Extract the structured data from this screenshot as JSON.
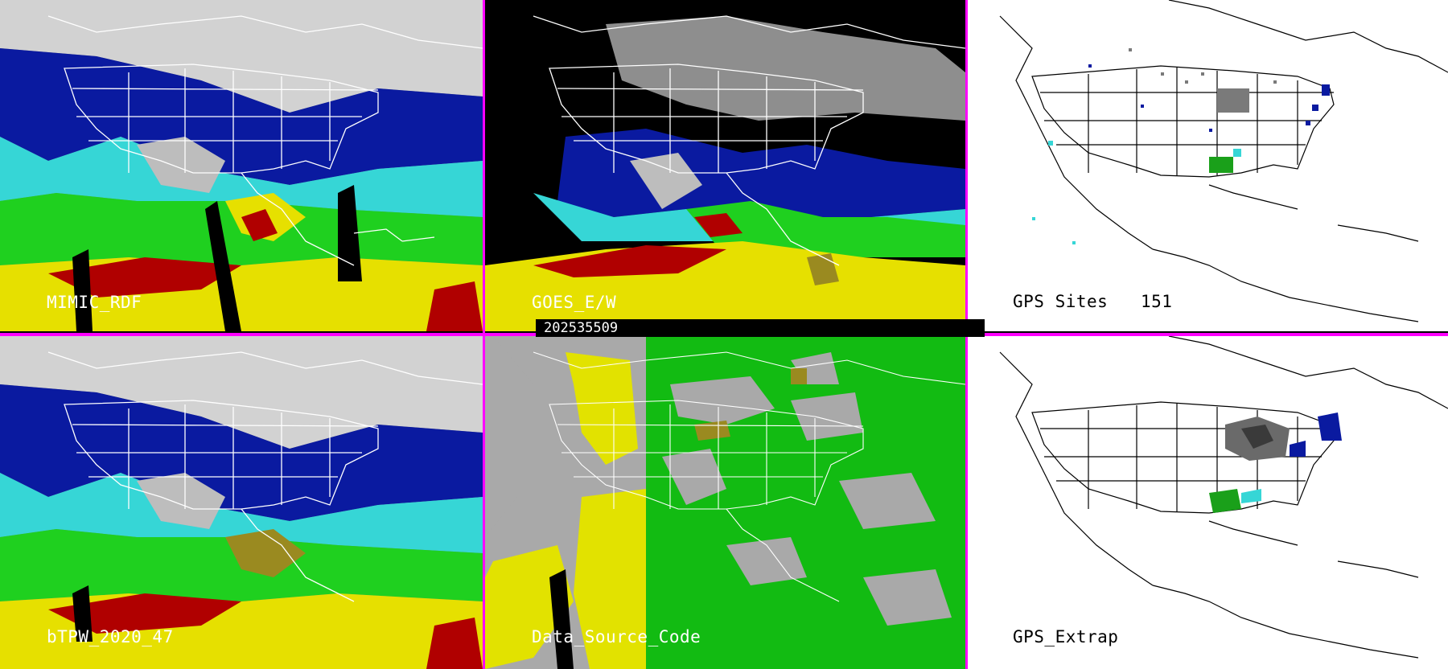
{
  "panels": {
    "mimic_rdf": {
      "label": "MIMIC_RDF"
    },
    "goes_ew": {
      "label": "GOES_E/W"
    },
    "gps_sites": {
      "label": "GPS Sites",
      "count": "151"
    },
    "btpw": {
      "label": "bTPW_2020_47"
    },
    "data_source": {
      "label": "Data_Source_Code"
    },
    "gps_extrap": {
      "label": "GPS_Extrap"
    }
  },
  "timestamp": "202535509",
  "colors": {
    "divider": "#ff00ff",
    "background_black": "#000000",
    "map_white": "#ffffff",
    "tpw_gray": "#9a9a9a",
    "tpw_blue": "#0a1aa0",
    "tpw_cyan": "#36d6d6",
    "tpw_green": "#1fd01f",
    "tpw_yellow": "#e6e000",
    "tpw_red": "#b00000",
    "tpw_olive": "#9a8a20",
    "source_gray": "#a9a9a9",
    "source_green": "#12bb12",
    "source_yellow": "#e2e200"
  }
}
